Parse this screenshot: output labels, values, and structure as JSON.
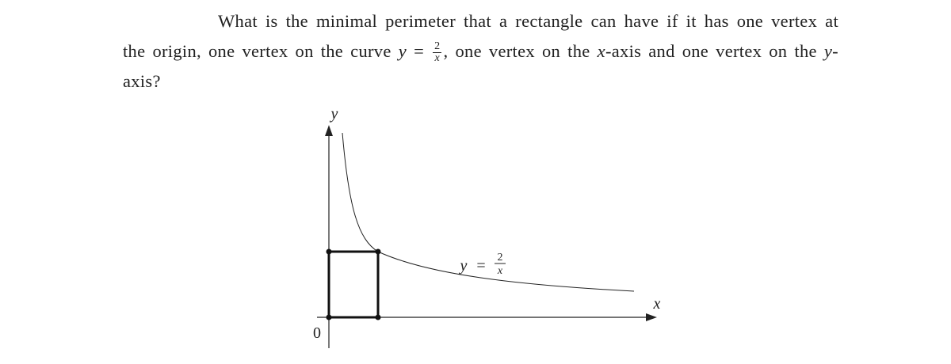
{
  "question": [
    "What is the minimal perimeter that a rectangle can have if it has one vertex at the origin, one vertex on the curve ",
    "y",
    "=",
    "2",
    "x",
    ", one vertex on the ",
    "x",
    "-axis and one vertex on the ",
    "y",
    "-axis?"
  ],
  "figure": {
    "y_axis_label": "y",
    "x_axis_label": "x",
    "origin_label": "0",
    "curve_label": [
      "y",
      "=",
      "2",
      "x"
    ]
  }
}
